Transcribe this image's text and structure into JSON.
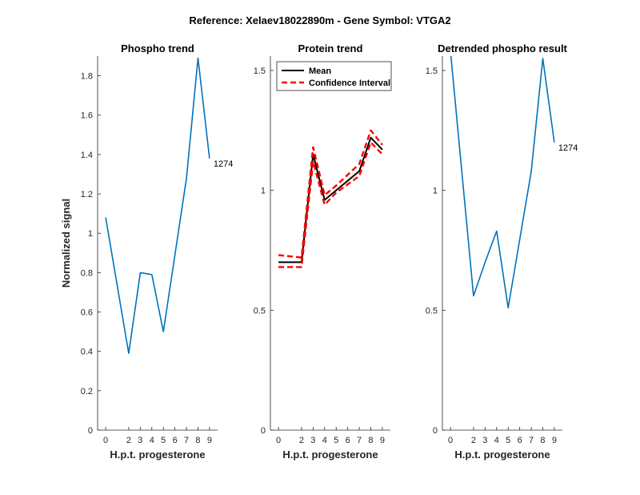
{
  "suptitle": "Reference:  Xelaev18022890m - Gene Symbol:  VTGA2",
  "chart_data": [
    {
      "type": "line",
      "title": "Phospho trend",
      "xlabel": "H.p.t. progesterone",
      "ylabel": "Normalized signal",
      "x": [
        0,
        2,
        3,
        4,
        5,
        7,
        8,
        9
      ],
      "xticks": [
        "0",
        "2",
        "3",
        "4",
        "5",
        "6",
        "7",
        "8",
        "9"
      ],
      "yticks": [
        "0",
        "0.2",
        "0.4",
        "0.6",
        "0.8",
        "1",
        "1.2",
        "1.4",
        "1.6",
        "1.8"
      ],
      "ylim": [
        0,
        1.9
      ],
      "series": [
        {
          "name": "1274",
          "color": "#0072BD",
          "values": [
            1.08,
            0.39,
            0.8,
            0.79,
            0.5,
            1.28,
            1.89,
            1.38
          ]
        }
      ],
      "annotation": {
        "text": "1274",
        "x": 9,
        "y": 1.38
      }
    },
    {
      "type": "line",
      "title": "Protein trend",
      "xlabel": "H.p.t. progesterone",
      "ylabel": "",
      "x": [
        0,
        2,
        3,
        4,
        5,
        7,
        8,
        9
      ],
      "xticks": [
        "0",
        "2",
        "3",
        "4",
        "5",
        "6",
        "7",
        "8",
        "9"
      ],
      "yticks": [
        "0",
        "0.5",
        "1",
        "1.5"
      ],
      "ylim": [
        0,
        1.56
      ],
      "legend": {
        "placement": "top-left",
        "entries": [
          "Mean",
          "Confidence Interval"
        ]
      },
      "series": [
        {
          "name": "Mean",
          "color": "#000000",
          "style": "solid",
          "values": [
            0.7,
            0.7,
            1.15,
            0.96,
            1.0,
            1.08,
            1.22,
            1.17
          ]
        },
        {
          "name": "Confidence Interval",
          "color": "#FF0000",
          "style": "dashed",
          "values": [
            0.73,
            0.72,
            1.18,
            0.98,
            1.02,
            1.11,
            1.25,
            1.19
          ]
        },
        {
          "name": "Confidence Interval",
          "color": "#FF0000",
          "style": "dashed",
          "values": [
            0.68,
            0.68,
            1.12,
            0.94,
            0.99,
            1.06,
            1.2,
            1.15
          ]
        }
      ]
    },
    {
      "type": "line",
      "title": "Detrended phospho result",
      "xlabel": "H.p.t. progesterone",
      "ylabel": "",
      "x": [
        0,
        2,
        3,
        4,
        5,
        7,
        8,
        9
      ],
      "xticks": [
        "0",
        "2",
        "3",
        "4",
        "5",
        "6",
        "7",
        "8",
        "9"
      ],
      "yticks": [
        "0",
        "0.5",
        "1",
        "1.5"
      ],
      "ylim": [
        0,
        1.56
      ],
      "series": [
        {
          "name": "1274",
          "color": "#0072BD",
          "values": [
            1.58,
            0.56,
            0.7,
            0.83,
            0.51,
            1.08,
            1.55,
            1.2
          ]
        }
      ],
      "annotation": {
        "text": "1274",
        "x": 9,
        "y": 1.2
      }
    }
  ]
}
